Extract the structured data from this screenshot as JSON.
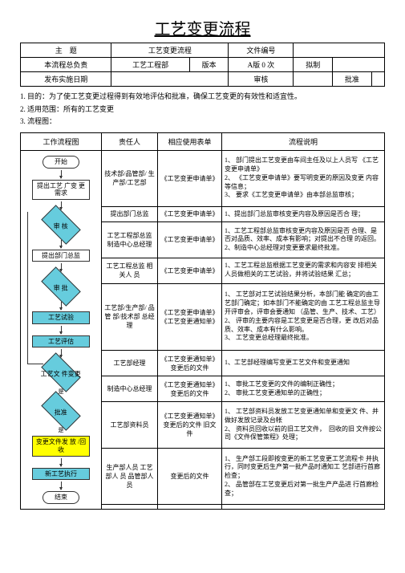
{
  "title": "工艺变更流程",
  "header": {
    "r1c1": "主　题",
    "r1c2": "工艺变更流程",
    "r1c3": "文件编号",
    "r1c4": "",
    "r2c1": "本流程总负责",
    "r2c2": "工艺工程部",
    "r2c3": "版本",
    "r2c4": "A版 0 次",
    "r2c5": "拟制",
    "r2c6": "",
    "r3c1": "发布实施日期",
    "r3c2": "",
    "r3c3": "审核",
    "r3c4": "",
    "r3c5": "批准",
    "r3c6": ""
  },
  "notes": {
    "n1": "1. 目的：为了使工艺变更过程得到有效地评估和批准，确保工艺变更的有效性和适宜性。",
    "n2": "2. 适用范围：所有的工艺变更",
    "n3": "3. 流程图："
  },
  "cols": {
    "c1": "工作流程图",
    "c2": "责任人",
    "c3": "相应使用表单",
    "c4": "流程说明"
  },
  "flow": {
    "start": "开始",
    "s1": "提出工艺 广变 更需求",
    "d1": "审 核",
    "s2": "提出部门总监",
    "d2": "审 批",
    "s3": "工艺试验",
    "s4": "工艺评估",
    "d3": "工艺文 件变更",
    "d4": "批准",
    "s5": "变更文件发 放 /回收",
    "s6": "新工艺执行",
    "end": "结束",
    "yes": "是"
  },
  "rows": [
    {
      "resp": "技术部/品管部/ 生产部/工艺部",
      "form": "《工艺变更申请单》",
      "desc": "1、 部门提出工艺变更由车间主任及以上人员写 《工艺变更申请单》\n2、 《工艺变更申请单》要写明变更的原因及变更 内容等信息；\n3、 要求《工艺变更申请单》由本部总监审核；"
    },
    {
      "resp": "提出部门总监",
      "form": "《工艺变更申请单》",
      "desc": "1、提出部门总监审核变更内容及原因是否合 理；"
    },
    {
      "resp": "工艺工程部总监 制造中心总经理",
      "form": "《工艺变更申请单》",
      "desc": "1、工艺工程部总监审核变更内容及原因是否 合理、是否对品质、效率、成本有影响；对提出不合理 的返回。\n2、制造中心总经理对变更要求最终批准。"
    },
    {
      "resp": "工艺工程总监 相关人 员",
      "form": "《工艺变更申请单》",
      "desc": "1、工艺工程总监根据工艺变更的需求和内容安 排相关人员做相关的工艺试验，并将试验结果 汇总；"
    },
    {
      "resp": "工艺部/生产部/ 品管 部/技术部 总经理",
      "form": "《工艺变更申请单》 《工艺变更通知单》",
      "desc": "1、 工艺部对工艺试验结果分析，本部门能 确定的由工艺部门确定；如本部门不能确定的由 工艺工程总监主导开评审会，评审会要通知 （品管、生产、技术、工艺）\n2、 评审的主要内容是工艺变更是否合理，更 改后对品质、效率、成本有什么影响。\n3、 工艺变更总经理最终批准。"
    },
    {
      "resp": "工艺部经理",
      "form": "《工艺变更通知单》 变更后的文件",
      "desc": "1、工艺部经理编写变更工艺文件和变更通知"
    },
    {
      "resp": "制造中心总经理",
      "form": "《工艺变更通知单》 变更后的文件",
      "desc": "1、 审批工艺变更的文件的编制正确性；\n2、 审批工艺变更通知单的正确性；"
    },
    {
      "resp": "工艺部资料员",
      "form": "《工艺变更通知单》 变更后的文件 旧文件",
      "desc": "1、 工艺部资料员发放工艺变更通知单和变更文 件、并做好发放记录及台帐\n2、 资料员回收以前的旧工艺文件，　回收的旧 文件按公司《文件保管策程》处理；"
    },
    {
      "resp": "生产部人员 工艺部人 员 品管部人员",
      "form": "变更后的文件",
      "desc": "1、 生产部工段即按变更的新工艺变更工艺流程卡 并执行，同时变更后生产第一批产品时通知工 艺部进行首廊检查；\n2、 品管部在工艺变更后对第一批生产产品进 行首廊检查；"
    },
    {
      "resp": "",
      "form": "",
      "desc": ""
    }
  ]
}
